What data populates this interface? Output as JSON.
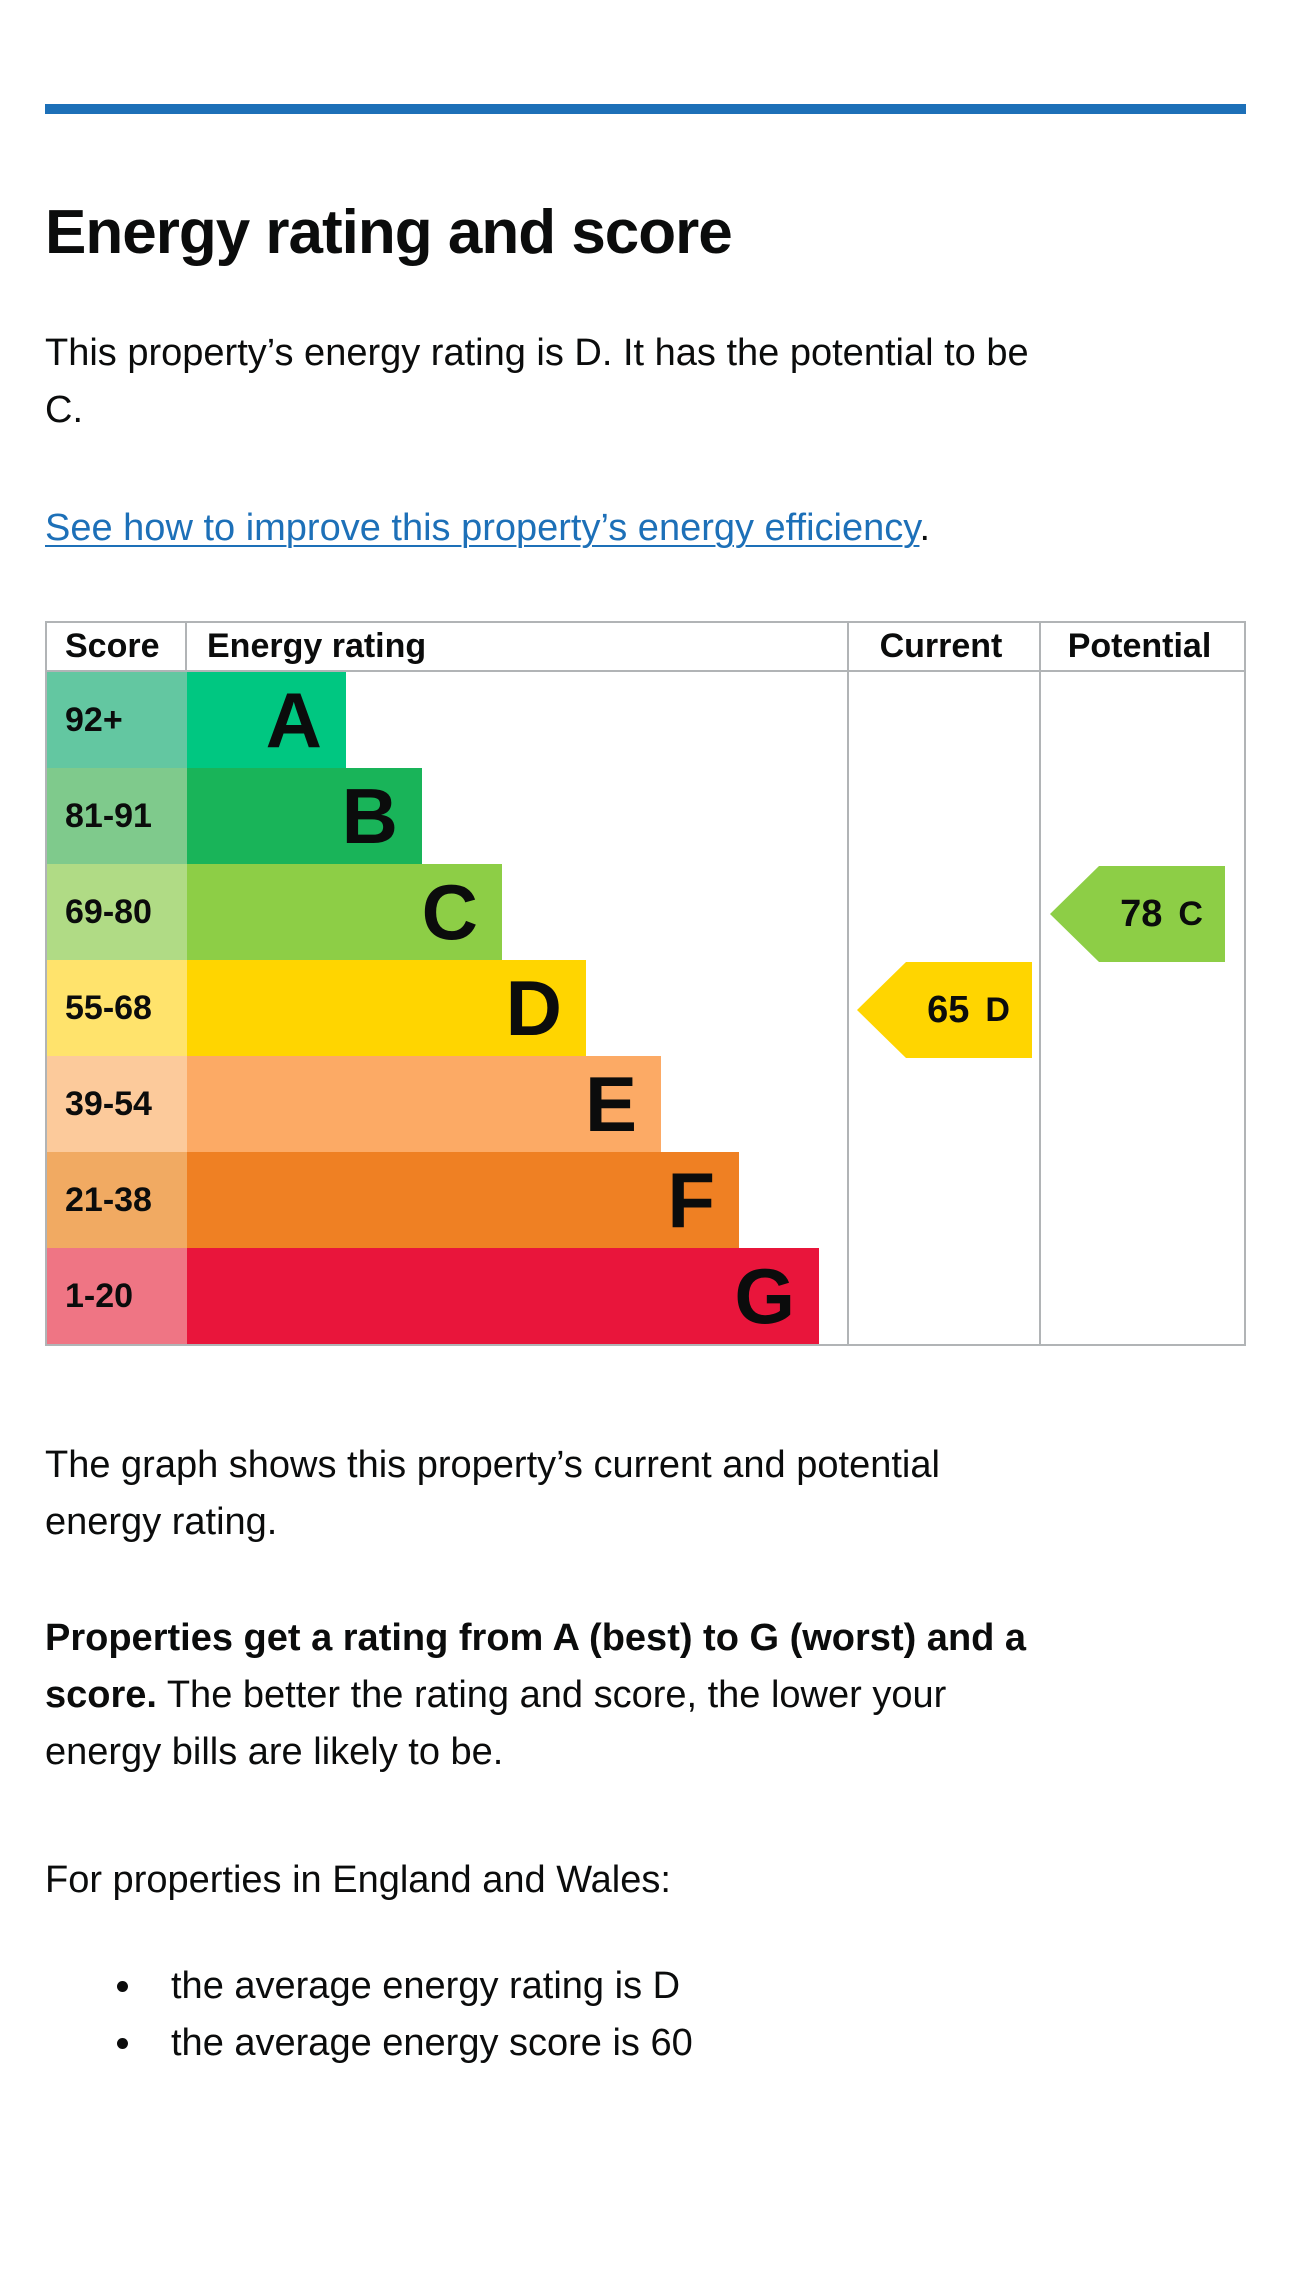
{
  "page": {
    "title": "Energy rating and score",
    "intro": {
      "line1": "This property’s energy rating is D. It has the potential to be",
      "line2": "C."
    },
    "improve_link": {
      "text": "See how to improve this property’s energy efficiency",
      "suffix": "."
    },
    "caption": {
      "line1": "The graph shows this property’s current and potential",
      "line2": "energy rating."
    },
    "explanation": {
      "line1_bold": "Properties get a rating from A (best) to G (worst) and a",
      "line2_bold": "score.",
      "line2_regular": "The better the rating and score, the lower your",
      "line3": "energy bills are likely to be."
    },
    "regions_intro": "For properties in England and Wales:",
    "bullets": [
      "the average energy rating is D",
      "the average energy score is 60"
    ]
  },
  "graph": {
    "headers": [
      "Score",
      "Energy rating",
      "Current",
      "Potential"
    ],
    "bands": [
      {
        "range": "92+",
        "letter": "A",
        "color": "#00c781",
        "tint": "#63c7a1"
      },
      {
        "range": "81-91",
        "letter": "B",
        "color": "#19b459",
        "tint": "#7fca8c"
      },
      {
        "range": "69-80",
        "letter": "C",
        "color": "#8dce46",
        "tint": "#b0db85"
      },
      {
        "range": "55-68",
        "letter": "D",
        "color": "#ffd500",
        "tint": "#ffe36c"
      },
      {
        "range": "39-54",
        "letter": "E",
        "color": "#fcaa65",
        "tint": "#fcca9b"
      },
      {
        "range": "21-38",
        "letter": "F",
        "color": "#ef8023",
        "tint": "#f1aa62"
      },
      {
        "range": "1-20",
        "letter": "G",
        "color": "#e9153b",
        "tint": "#ef7584"
      }
    ],
    "current": {
      "score": "65",
      "band": "D",
      "color": "#ffd500"
    },
    "potential": {
      "score": "78",
      "band": "C",
      "color": "#8dce46"
    }
  },
  "chart_data": {
    "type": "table",
    "title": "Energy rating and score",
    "columns": [
      "Score",
      "Energy rating",
      "Current",
      "Potential"
    ],
    "bands": [
      {
        "score_range": "92+",
        "rating": "A"
      },
      {
        "score_range": "81-91",
        "rating": "B"
      },
      {
        "score_range": "69-80",
        "rating": "C"
      },
      {
        "score_range": "55-68",
        "rating": "D"
      },
      {
        "score_range": "39-54",
        "rating": "E"
      },
      {
        "score_range": "21-38",
        "rating": "F"
      },
      {
        "score_range": "1-20",
        "rating": "G"
      }
    ],
    "current": {
      "score": 65,
      "band": "D"
    },
    "potential": {
      "score": 78,
      "band": "C"
    },
    "average_england_wales": {
      "rating": "D",
      "score": 60
    }
  },
  "colors": {
    "accent_blue": "#1d70b8",
    "text": "#0b0c0c",
    "border_grey": "#b1b4b6"
  }
}
